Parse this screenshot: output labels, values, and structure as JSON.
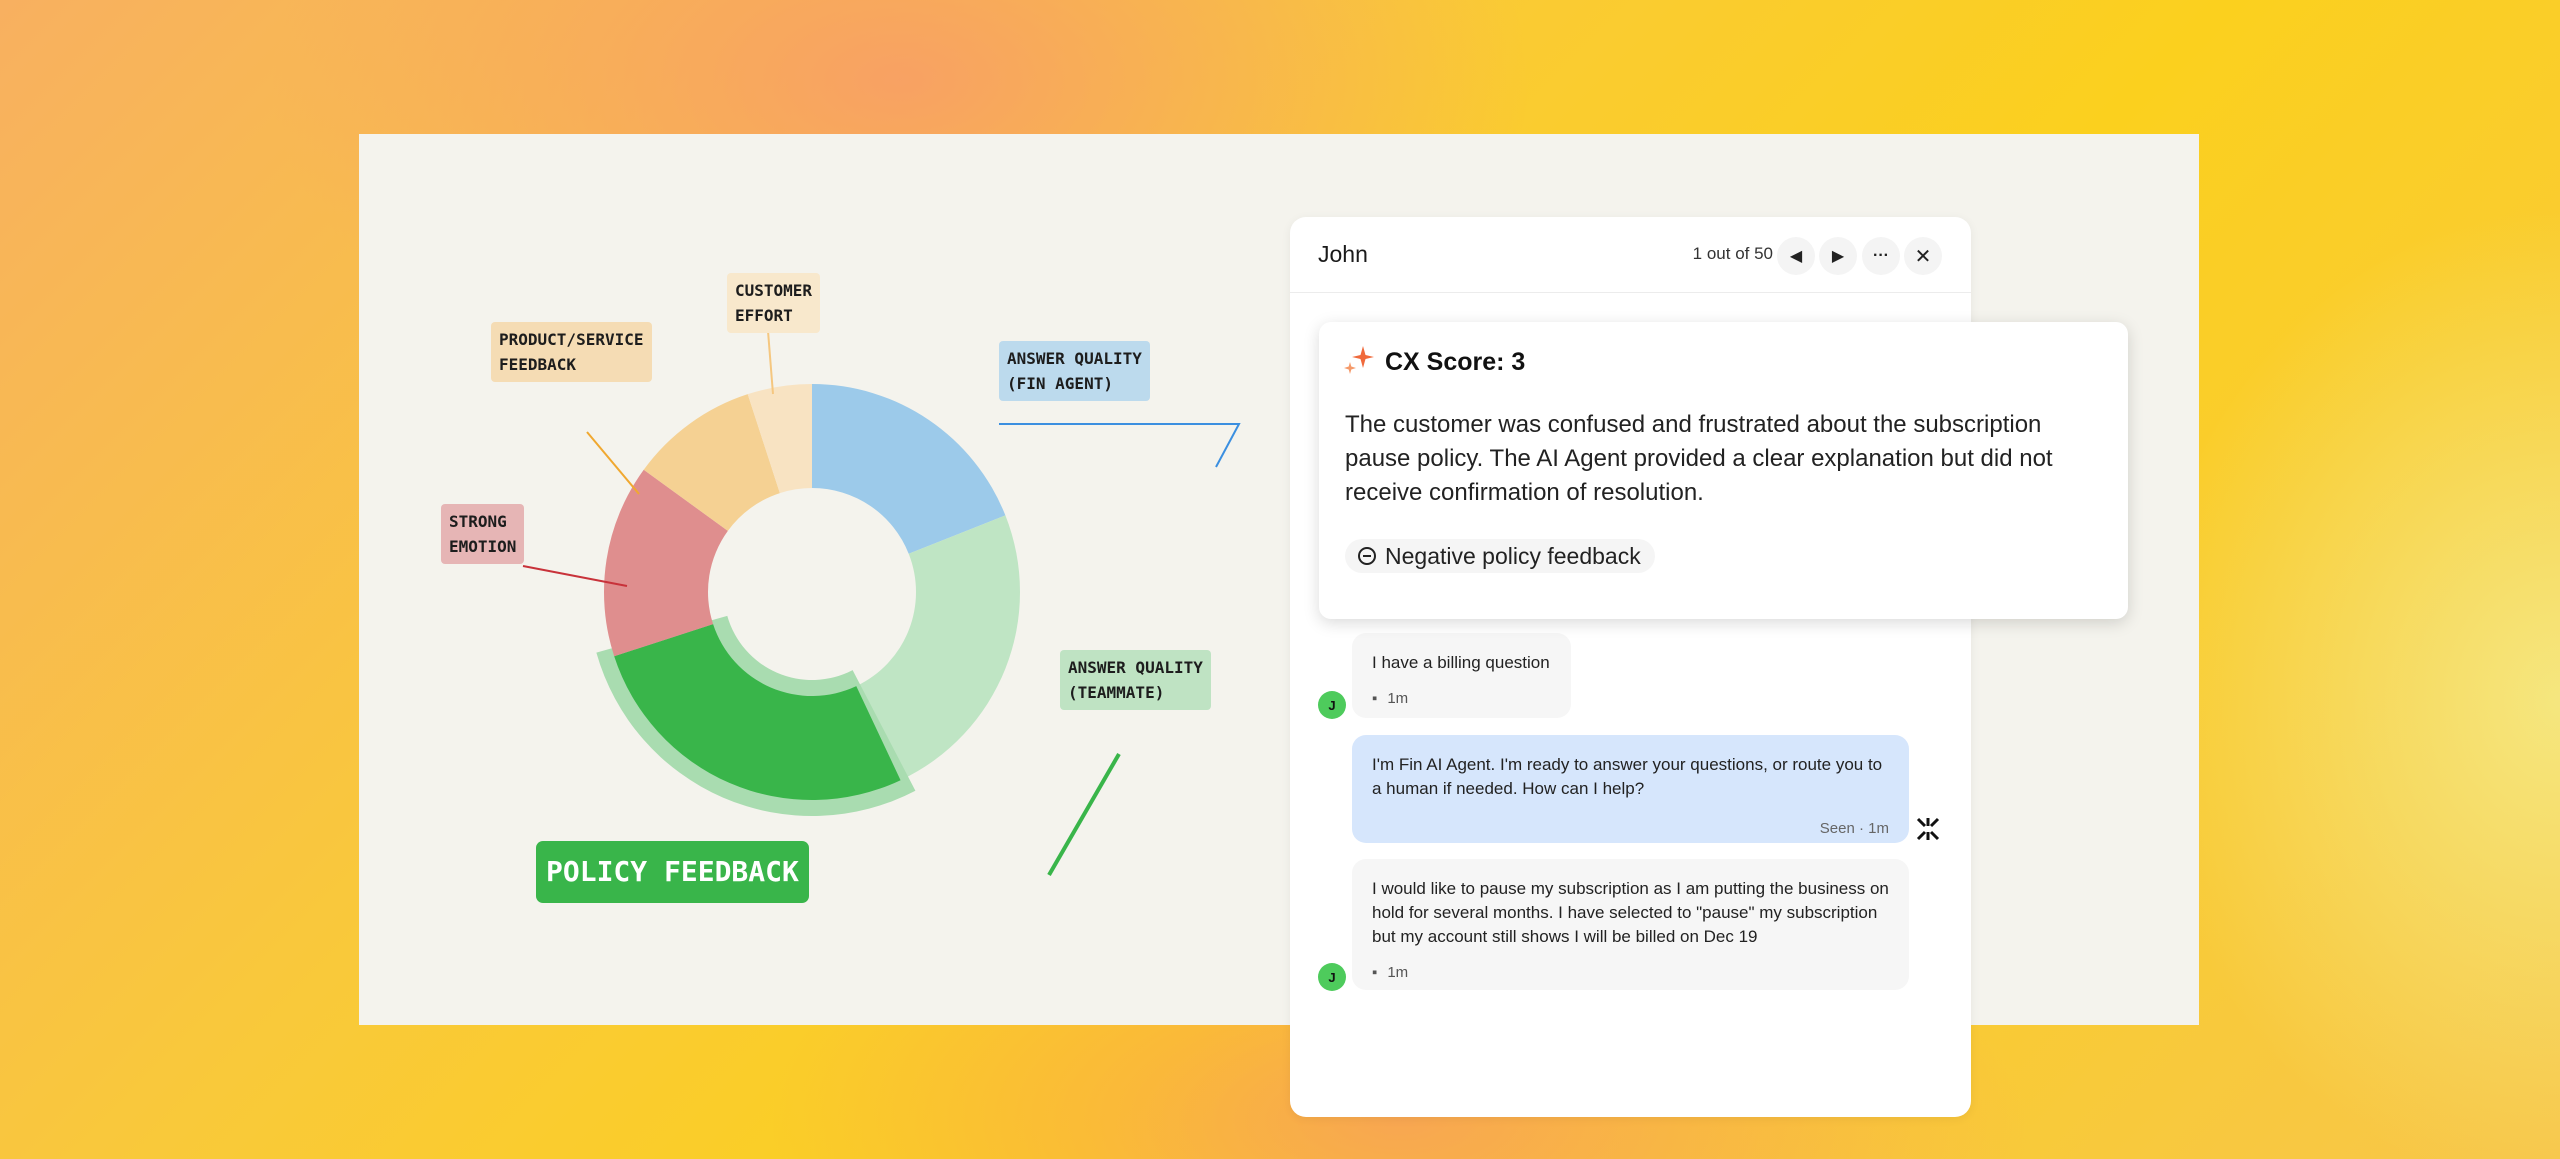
{
  "chart_data": {
    "type": "pie",
    "variant": "donut",
    "categories": [
      "Answer Quality (Fin Agent)",
      "Answer Quality (Teammate)",
      "Policy Feedback",
      "Strong Emotion",
      "Product/Service Feedback",
      "Customer Effort"
    ],
    "labels": [
      "ANSWER QUALITY\n(FIN AGENT)",
      "ANSWER QUALITY\n(TEAMMATE)",
      "POLICY FEEDBACK",
      "STRONG\nEMOTION",
      "PRODUCT/SERVICE\nFEEDBACK",
      "CUSTOMER\nEFFORT"
    ],
    "values": [
      19,
      24,
      27,
      15,
      10,
      5
    ],
    "colors": [
      "#9ccaea",
      "#bfe5c4",
      "#39b54a",
      "#df8e8e",
      "#f5d193",
      "#f8e3c2"
    ],
    "label_colors": [
      "#bcdaed",
      "#bfe3c3",
      "#39b54a",
      "#e6b5b5",
      "#f5dcb4",
      "#f8e8cc"
    ],
    "line_colors": [
      "#3b8fe0",
      "#39b54a",
      "#39b54a",
      "#c8323a",
      "#f0a830",
      "#f5c780"
    ],
    "highlighted": "Policy Feedback",
    "highlight_color": "#a9dcb0"
  },
  "panel": {
    "name": "John",
    "counter": "1 out of 50",
    "prev_icon": "caret-left-icon",
    "next_icon": "caret-right-icon",
    "more_icon": "ellipsis-icon",
    "close_icon": "close-icon"
  },
  "score_card": {
    "title": "CX Score: 3",
    "accent": "#f06a3c",
    "body": "The customer was confused and frustrated about the subscription pause policy. The AI Agent provided a clear explanation but did not receive confirmation of resolution.",
    "chip": "Negative policy feedback"
  },
  "messages": [
    {
      "text": "I have a billing question",
      "time": "1m",
      "avatar": "J"
    },
    {
      "text": "I'm Fin AI Agent. I'm ready to answer your questions, or route you to a human if needed. How can I help?",
      "status": "Seen · 1m"
    },
    {
      "text": "I would like to pause my subscription as I am putting the business on hold for several months. I have selected to \"pause\" my subscription but my account still shows I will be billed on Dec 19",
      "time": "1m",
      "avatar": "J"
    }
  ]
}
